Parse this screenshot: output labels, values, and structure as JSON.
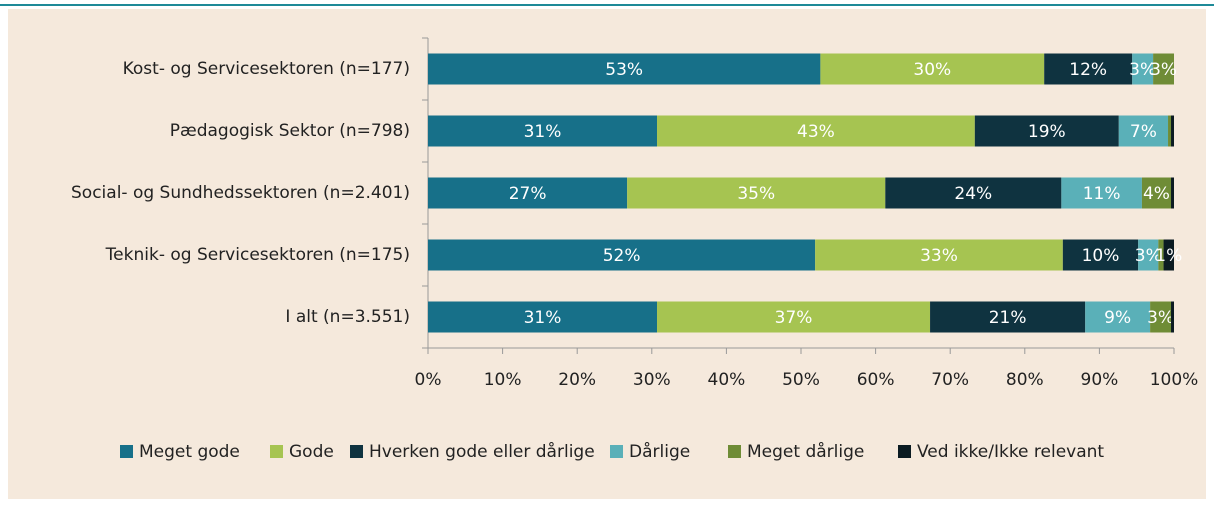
{
  "chart_data": {
    "type": "stacked-bar-horizontal",
    "categories": [
      "Kost- og Servicesektoren (n=177)",
      "Pædagogisk Sektor (n=798)",
      "Social- og Sundhedssektoren (n=2.401)",
      "Teknik- og Servicesektoren (n=175)",
      "I alt (n=3.551)"
    ],
    "series": [
      {
        "name": "Meget gode",
        "color": "#177089",
        "values": [
          52.6,
          30.7,
          26.7,
          51.9,
          30.7
        ],
        "value_labels": [
          "53%",
          "31%",
          "27%",
          "52%",
          "31%"
        ]
      },
      {
        "name": "Gode",
        "color": "#a6c451",
        "values": [
          30.0,
          42.6,
          34.6,
          33.2,
          36.6
        ],
        "value_labels": [
          "30%",
          "43%",
          "35%",
          "33%",
          "37%"
        ]
      },
      {
        "name": "Hverken gode eller dårlige",
        "color": "#0f3340",
        "values": [
          11.8,
          19.3,
          23.6,
          10.1,
          20.8
        ],
        "value_labels": [
          "12%",
          "19%",
          "24%",
          "10%",
          "21%"
        ]
      },
      {
        "name": "Dårlige",
        "color": "#5ab0b8",
        "values": [
          2.8,
          6.6,
          10.8,
          2.7,
          8.7
        ],
        "value_labels": [
          "3%",
          "7%",
          "11%",
          "3%",
          "9%"
        ]
      },
      {
        "name": "Meget dårlige",
        "color": "#6f8c36",
        "values": [
          2.8,
          0.4,
          3.9,
          0.7,
          2.8
        ],
        "value_labels": [
          "3%",
          null,
          "4%",
          null,
          "3%"
        ]
      },
      {
        "name": "Ved ikke/Ikke relevant",
        "color": "#0b1b22",
        "values": [
          0.0,
          0.4,
          0.4,
          1.4,
          0.4
        ],
        "value_labels": [
          null,
          null,
          null,
          "1%",
          null
        ]
      }
    ],
    "xlim": [
      0,
      100
    ],
    "xticks": [
      {
        "value": 0,
        "label": "0%"
      },
      {
        "value": 10,
        "label": "10%"
      },
      {
        "value": 20,
        "label": "20%"
      },
      {
        "value": 30,
        "label": "30%"
      },
      {
        "value": 40,
        "label": "40%"
      },
      {
        "value": 50,
        "label": "50%"
      },
      {
        "value": 60,
        "label": "60%"
      },
      {
        "value": 70,
        "label": "70%"
      },
      {
        "value": 80,
        "label": "80%"
      },
      {
        "value": 90,
        "label": "90%"
      },
      {
        "value": 100,
        "label": "100%"
      }
    ]
  }
}
